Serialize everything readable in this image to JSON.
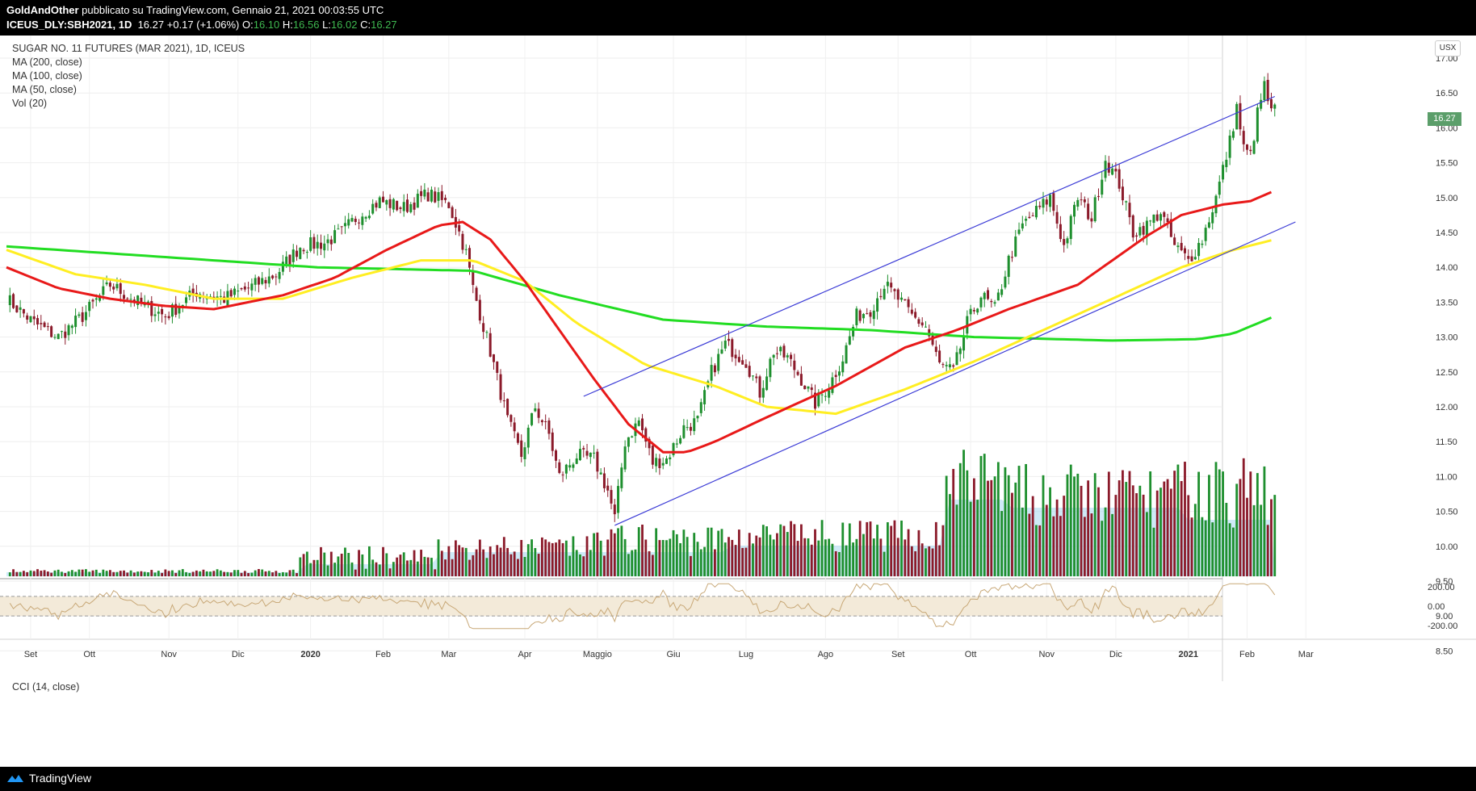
{
  "header": {
    "author": "GoldAndOther",
    "published": "pubblicato su TradingView.com, Gennaio 21, 2021 00:03:55 UTC",
    "symbol": "ICEUS_DLY:SBH2021, 1D",
    "last": "16.27",
    "change": "+0.17 (+1.06%)",
    "o_label": "O:",
    "o_value": "16.10",
    "h_label": "H:",
    "h_value": "16.56",
    "l_label": "L:",
    "l_value": "16.02",
    "c_label": "C:",
    "c_value": "16.27"
  },
  "legend": {
    "title": "SUGAR NO. 11 FUTURES (MAR 2021), 1D, ICEUS",
    "ma200": "MA (200, close)",
    "ma100": "MA (100, close)",
    "ma50": "MA (50, close)",
    "vol": "Vol (20)",
    "cci": "CCI (14, close)"
  },
  "currency": "USX",
  "price_tag": "16.27",
  "footer": {
    "brand": "TradingView"
  },
  "colors": {
    "up": "#1e8f2e",
    "down": "#8b1a2a",
    "ma200": "#22dd22",
    "ma100": "#ffee22",
    "ma50": "#e81919",
    "trend": "#3b3bd6",
    "vol_ma": "#a8d8f0",
    "cci_line": "#c8a877",
    "cci_band": "#f3ead9"
  },
  "chart_data": {
    "type": "candlestick",
    "x_ticks": [
      "Set",
      "Ott",
      "Nov",
      "Dic",
      "2020",
      "Feb",
      "Mar",
      "Apr",
      "Maggio",
      "Giu",
      "Lug",
      "Ago",
      "Set",
      "Ott",
      "Nov",
      "Dic",
      "2021",
      "Feb",
      "Mar"
    ],
    "y_ticks": [
      "17.00",
      "16.50",
      "16.00",
      "15.50",
      "15.00",
      "14.50",
      "14.00",
      "13.50",
      "13.00",
      "12.50",
      "12.00",
      "11.50",
      "11.00",
      "10.50",
      "10.00",
      "9.50",
      "9.00",
      "8.50"
    ],
    "ylim": [
      8.3,
      17.2
    ],
    "cci_ticks": [
      "200.00",
      "0.00",
      "-200.00"
    ],
    "price_path": [
      [
        0,
        13.55
      ],
      [
        8,
        13.2
      ],
      [
        15,
        13.0
      ],
      [
        22,
        13.3
      ],
      [
        30,
        13.75
      ],
      [
        38,
        13.5
      ],
      [
        46,
        13.3
      ],
      [
        55,
        13.65
      ],
      [
        63,
        13.55
      ],
      [
        70,
        13.7
      ],
      [
        78,
        13.9
      ],
      [
        85,
        14.3
      ],
      [
        92,
        14.35
      ],
      [
        97,
        14.5
      ],
      [
        102,
        14.75
      ],
      [
        108,
        14.95
      ],
      [
        115,
        14.85
      ],
      [
        122,
        15.05
      ],
      [
        128,
        14.9
      ],
      [
        131,
        14.5
      ],
      [
        133,
        14.2
      ],
      [
        135,
        13.7
      ],
      [
        140,
        12.8
      ],
      [
        145,
        11.8
      ],
      [
        149,
        11.3
      ],
      [
        153,
        12.0
      ],
      [
        157,
        11.6
      ],
      [
        160,
        11.0
      ],
      [
        165,
        11.3
      ],
      [
        170,
        11.25
      ],
      [
        174,
        10.8
      ],
      [
        176,
        10.4
      ],
      [
        179,
        11.5
      ],
      [
        183,
        11.8
      ],
      [
        187,
        11.2
      ],
      [
        191,
        11.25
      ],
      [
        196,
        11.7
      ],
      [
        200,
        11.8
      ],
      [
        204,
        12.5
      ],
      [
        208,
        12.9
      ],
      [
        214,
        12.65
      ],
      [
        218,
        12.2
      ],
      [
        222,
        12.8
      ],
      [
        226,
        12.7
      ],
      [
        230,
        12.4
      ],
      [
        234,
        12.05
      ],
      [
        238,
        12.3
      ],
      [
        242,
        12.7
      ],
      [
        246,
        13.3
      ],
      [
        250,
        13.4
      ],
      [
        254,
        13.75
      ],
      [
        258,
        13.55
      ],
      [
        262,
        13.3
      ],
      [
        266,
        13.15
      ],
      [
        270,
        12.6
      ],
      [
        274,
        12.5
      ],
      [
        278,
        13.2
      ],
      [
        282,
        13.6
      ],
      [
        286,
        13.4
      ],
      [
        290,
        14.1
      ],
      [
        294,
        14.6
      ],
      [
        298,
        14.8
      ],
      [
        302,
        15.0
      ],
      [
        306,
        14.3
      ],
      [
        310,
        15.0
      ],
      [
        314,
        14.7
      ],
      [
        318,
        15.55
      ],
      [
        322,
        15.2
      ],
      [
        326,
        14.5
      ],
      [
        330,
        14.6
      ],
      [
        334,
        14.8
      ],
      [
        338,
        14.3
      ],
      [
        342,
        14.1
      ],
      [
        346,
        14.4
      ],
      [
        350,
        15.0
      ],
      [
        354,
        15.8
      ],
      [
        356,
        16.3
      ],
      [
        358,
        15.7
      ],
      [
        360,
        15.6
      ],
      [
        362,
        16.2
      ],
      [
        364,
        16.6
      ],
      [
        366,
        16.2
      ],
      [
        367,
        16.27
      ]
    ],
    "ma200_points": [
      [
        0,
        14.3
      ],
      [
        30,
        14.2
      ],
      [
        60,
        14.1
      ],
      [
        90,
        14.0
      ],
      [
        135,
        13.95
      ],
      [
        160,
        13.6
      ],
      [
        190,
        13.25
      ],
      [
        220,
        13.15
      ],
      [
        250,
        13.1
      ],
      [
        280,
        13.0
      ],
      [
        320,
        12.95
      ],
      [
        345,
        12.97
      ],
      [
        355,
        13.05
      ],
      [
        367,
        13.3
      ]
    ],
    "ma100_points": [
      [
        0,
        14.25
      ],
      [
        20,
        13.9
      ],
      [
        40,
        13.75
      ],
      [
        60,
        13.55
      ],
      [
        80,
        13.55
      ],
      [
        100,
        13.85
      ],
      [
        120,
        14.1
      ],
      [
        135,
        14.1
      ],
      [
        150,
        13.8
      ],
      [
        165,
        13.2
      ],
      [
        185,
        12.6
      ],
      [
        205,
        12.3
      ],
      [
        220,
        12.0
      ],
      [
        240,
        11.9
      ],
      [
        260,
        12.25
      ],
      [
        280,
        12.65
      ],
      [
        300,
        13.1
      ],
      [
        320,
        13.55
      ],
      [
        340,
        14.0
      ],
      [
        355,
        14.25
      ],
      [
        367,
        14.4
      ]
    ],
    "ma50_points": [
      [
        0,
        14.0
      ],
      [
        15,
        13.7
      ],
      [
        30,
        13.55
      ],
      [
        45,
        13.45
      ],
      [
        60,
        13.4
      ],
      [
        80,
        13.6
      ],
      [
        95,
        13.85
      ],
      [
        110,
        14.25
      ],
      [
        125,
        14.6
      ],
      [
        132,
        14.65
      ],
      [
        140,
        14.4
      ],
      [
        150,
        13.8
      ],
      [
        160,
        13.1
      ],
      [
        170,
        12.4
      ],
      [
        180,
        11.75
      ],
      [
        190,
        11.35
      ],
      [
        197,
        11.35
      ],
      [
        205,
        11.5
      ],
      [
        220,
        11.85
      ],
      [
        240,
        12.3
      ],
      [
        260,
        12.85
      ],
      [
        275,
        13.1
      ],
      [
        290,
        13.4
      ],
      [
        310,
        13.75
      ],
      [
        330,
        14.45
      ],
      [
        340,
        14.75
      ],
      [
        352,
        14.9
      ],
      [
        360,
        14.95
      ],
      [
        367,
        15.1
      ]
    ],
    "trend_upper": [
      [
        167,
        12.15
      ],
      [
        367,
        16.45
      ]
    ],
    "trend_lower": [
      [
        176,
        10.3
      ],
      [
        373,
        14.65
      ]
    ]
  }
}
